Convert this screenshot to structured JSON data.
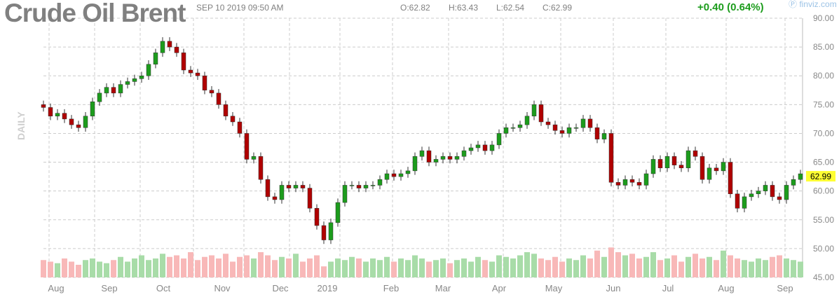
{
  "header": {
    "title": "Crude Oil Brent",
    "datetime": "SEP 10 2019 09:50 AM",
    "open": "O:62.82",
    "high": "H:63.43",
    "low": "L:62.54",
    "close": "C:62.99",
    "change": "+0.40 (0.64%)",
    "brand": "finviz.com",
    "period": "DAILY"
  },
  "colors": {
    "up": "#1c9c1c",
    "down": "#b00000",
    "vol_up": "#a8dca8",
    "vol_down": "#f8b8b8",
    "grid": "#cccccc",
    "last_bg": "#ffff33"
  },
  "chart_data": {
    "type": "candlestick",
    "title": "Crude Oil Brent",
    "ylim": [
      45,
      90
    ],
    "y_ticks": [
      "90.00",
      "85.00",
      "80.00",
      "75.00",
      "70.00",
      "65.00",
      "60.00",
      "55.00",
      "50.00",
      "45.00"
    ],
    "x_ticks": [
      "Aug",
      "Sep",
      "Oct",
      "Nov",
      "Dec",
      "2019",
      "Feb",
      "Mar",
      "Apr",
      "May",
      "Jun",
      "Jul",
      "Aug",
      "Sep"
    ],
    "last_price": "62.99",
    "grid": true,
    "closes": [
      74.5,
      73,
      73.5,
      72.5,
      71.5,
      71,
      73,
      75.5,
      77,
      78,
      77,
      78.5,
      79,
      79.5,
      80,
      82,
      84,
      86,
      85,
      84,
      81,
      80.5,
      80,
      77.5,
      77,
      75,
      73,
      72,
      70,
      65.5,
      66,
      62,
      59,
      58.5,
      61,
      60.5,
      61,
      60.5,
      57,
      54,
      51.5,
      54.5,
      58,
      61,
      61,
      60.5,
      61,
      61,
      62,
      63,
      62.5,
      63,
      63.5,
      66,
      67,
      65,
      65.5,
      66,
      65.5,
      66,
      67,
      67.5,
      68,
      67,
      68,
      70,
      71,
      71,
      71.5,
      73,
      75,
      72,
      71.5,
      70.5,
      70,
      71,
      71,
      72.5,
      71,
      69,
      70,
      61.5,
      61,
      62,
      61.5,
      61,
      63,
      65.5,
      64,
      66,
      64.5,
      64,
      67,
      66,
      62,
      64,
      63.5,
      65,
      59.5,
      57,
      59,
      59.5,
      60,
      61,
      59,
      58.5,
      61,
      62,
      62.99
    ],
    "volume_relative": [
      0.55,
      0.5,
      0.45,
      0.6,
      0.5,
      0.4,
      0.55,
      0.6,
      0.5,
      0.45,
      0.55,
      0.65,
      0.5,
      0.6,
      0.7,
      0.55,
      0.6,
      0.75,
      0.65,
      0.7,
      0.6,
      0.8,
      0.55,
      0.65,
      0.7,
      0.6,
      0.75,
      0.5,
      0.65,
      0.7,
      0.6,
      0.8,
      0.7,
      0.55,
      0.65,
      0.6,
      0.75,
      0.5,
      0.6,
      0.7,
      0.35,
      0.5,
      0.6,
      0.55,
      0.65,
      0.6,
      0.5,
      0.6,
      0.55,
      0.65,
      0.5,
      0.6,
      0.55,
      0.7,
      0.6,
      0.5,
      0.55,
      0.6,
      0.45,
      0.55,
      0.6,
      0.5,
      0.65,
      0.55,
      0.5,
      0.7,
      0.65,
      0.6,
      0.7,
      0.8,
      0.75,
      0.6,
      0.55,
      0.65,
      0.5,
      0.6,
      0.55,
      0.7,
      0.6,
      0.85,
      0.65,
      0.95,
      0.8,
      0.7,
      0.75,
      0.6,
      0.65,
      0.8,
      0.55,
      0.6,
      0.7,
      0.5,
      0.65,
      0.75,
      0.6,
      0.65,
      0.55,
      0.85,
      0.7,
      0.6,
      0.55,
      0.5,
      0.6,
      0.55,
      0.65,
      0.7,
      0.6,
      0.55,
      0.5
    ]
  }
}
